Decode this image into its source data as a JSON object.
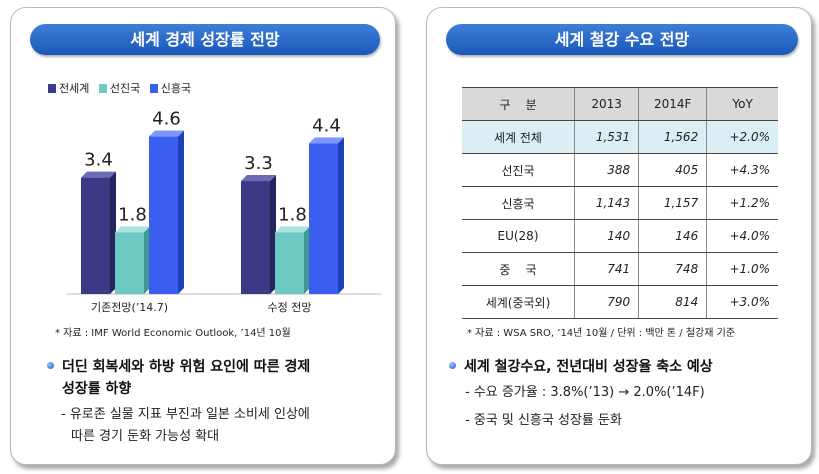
{
  "left": {
    "header": "세계 경제 성장률 전망",
    "legend": [
      {
        "label": "전세계",
        "color": "#3c3a86"
      },
      {
        "label": "선진국",
        "color": "#6cc8c0"
      },
      {
        "label": "신흥국",
        "color": "#3a5ff0"
      }
    ],
    "source": "* 자료 : IMF World Economic Outlook, ’14년 10월",
    "bullet": "더딘 회복세와 하방 위험 요인에 따른 경제",
    "bullet_cont": "성장률 하향",
    "sub1": "- 유로존 실물 지표 부진과 일본 소비세 인상에",
    "sub1_cont": "따른 경기 둔화 가능성 확대"
  },
  "chart_data": {
    "type": "bar",
    "categories": [
      "기존전망(’14.7)",
      "수정 전망"
    ],
    "series": [
      {
        "name": "전세계",
        "values": [
          3.4,
          3.3
        ]
      },
      {
        "name": "선진국",
        "values": [
          1.8,
          1.8
        ]
      },
      {
        "name": "신흥국",
        "values": [
          4.6,
          4.4
        ]
      }
    ],
    "title": "세계 경제 성장률 전망",
    "ylim": [
      0,
      5.2
    ],
    "legend_position": "top-left",
    "colors": [
      "#3c3a86",
      "#6cc8c0",
      "#3a5ff0"
    ],
    "value_labels": [
      "3.4",
      "3.3",
      "1.8",
      "1.8",
      "4.6",
      "4.4"
    ]
  },
  "right": {
    "header": "세계 철강 수요 전망",
    "columns": [
      "구    분",
      "2013",
      "2014F",
      "YoY"
    ],
    "rows": [
      {
        "label": "세계 전체",
        "c2013": "1,531",
        "c2014": "1,562",
        "yoy": "+2.0%"
      },
      {
        "label": "선진국",
        "c2013": "388",
        "c2014": "405",
        "yoy": "+4.3%"
      },
      {
        "label": "신흥국",
        "c2013": "1,143",
        "c2014": "1,157",
        "yoy": "+1.2%"
      },
      {
        "label": "EU(28)",
        "c2013": "140",
        "c2014": "146",
        "yoy": "+4.0%"
      },
      {
        "label": "중    국",
        "c2013": "741",
        "c2014": "748",
        "yoy": "+1.0%"
      },
      {
        "label": "세계(중국외)",
        "c2013": "790",
        "c2014": "814",
        "yoy": "+3.0%"
      }
    ],
    "source": "* 자료 : WSA SRO, ’14년 10월 / 단위 : 백만 톤 / 철강재 기준",
    "bullet": "세계 철강수요, 전년대비 성장율 축소 예상",
    "sub1": "- 수요 증가율 : 3.8%(’13) → 2.0%(’14F)",
    "sub2": "- 중국 및 신흥국 성장률 둔화"
  }
}
